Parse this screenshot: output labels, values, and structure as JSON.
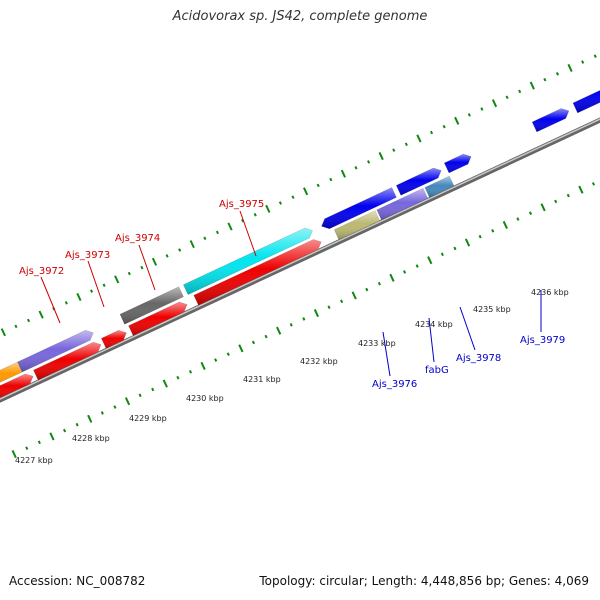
{
  "title": "Acidovorax sp. JS42, complete genome",
  "accession_text": "Accession: NC_008782",
  "stats_text": "Topology: circular; Length: 4,448,856 bp; Genes: 4,069",
  "kbp_labels": [
    "4227 kbp",
    "4228 kbp",
    "4229 kbp",
    "4230 kbp",
    "4231 kbp",
    "4232 kbp",
    "4233 kbp",
    "4234 kbp",
    "4235 kbp",
    "4236 kbp"
  ],
  "gene_labels": [
    {
      "text": "Ajs_3972",
      "strand": "forward"
    },
    {
      "text": "Ajs_3973",
      "strand": "forward"
    },
    {
      "text": "Ajs_3974",
      "strand": "forward"
    },
    {
      "text": "Ajs_3975",
      "strand": "forward"
    },
    {
      "text": "Ajs_3976",
      "strand": "reverse"
    },
    {
      "text": "fabG",
      "strand": "reverse"
    },
    {
      "text": "Ajs_3978",
      "strand": "reverse"
    },
    {
      "text": "Ajs_3979",
      "strand": "reverse"
    }
  ],
  "colors": {
    "forward_label": "#cc0000",
    "reverse_label": "#0000cc",
    "forward_cds": "#ee0000",
    "reverse_cds": "#0000ee",
    "backbone": "#888888",
    "tick": "#118811"
  }
}
